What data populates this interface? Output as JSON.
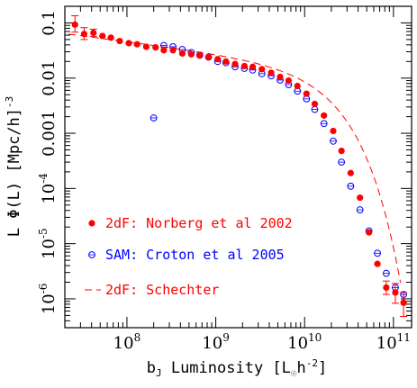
{
  "chart_data": {
    "type": "scatter",
    "title": "",
    "xlabel": "b_J Luminosity [L_☉h^-2]",
    "ylabel": "L Φ(L) [Mpc/h]^-3",
    "x_scale": "log",
    "y_scale": "log",
    "xlim": [
      20000000.0,
      160000000000.0
    ],
    "ylim": [
      3e-07,
      0.2
    ],
    "x_ticks": [
      {
        "value": 100000000.0,
        "base": "10",
        "exp": "8"
      },
      {
        "value": 1000000000.0,
        "base": "10",
        "exp": "9"
      },
      {
        "value": 10000000000.0,
        "base": "10",
        "exp": "10"
      },
      {
        "value": 100000000000.0,
        "base": "10",
        "exp": "11"
      }
    ],
    "y_ticks": [
      {
        "value": 0.1,
        "text": "0.1"
      },
      {
        "value": 0.01,
        "text": "0.01"
      },
      {
        "value": 0.001,
        "text": "0.001"
      },
      {
        "value": 0.0001,
        "base": "10",
        "exp": "-4"
      },
      {
        "value": 1e-05,
        "base": "10",
        "exp": "-5"
      },
      {
        "value": 1e-06,
        "base": "10",
        "exp": "-6"
      }
    ],
    "series": [
      {
        "name": "2dF: Norberg et al 2002",
        "marker": "filled-circle",
        "color": "#ff0000",
        "points": [
          {
            "x": 26000000.0,
            "y": 0.093,
            "lo": 0.068,
            "hi": 0.135
          },
          {
            "x": 33000000.0,
            "y": 0.063,
            "lo": 0.05,
            "hi": 0.082
          },
          {
            "x": 42000000.0,
            "y": 0.066,
            "lo": 0.057,
            "hi": 0.077
          },
          {
            "x": 53000000.0,
            "y": 0.058
          },
          {
            "x": 66000000.0,
            "y": 0.054
          },
          {
            "x": 83000000.0,
            "y": 0.047
          },
          {
            "x": 105000000.0,
            "y": 0.043
          },
          {
            "x": 130000000.0,
            "y": 0.041
          },
          {
            "x": 165000000.0,
            "y": 0.037
          },
          {
            "x": 210000000.0,
            "y": 0.036
          },
          {
            "x": 260000000.0,
            "y": 0.032
          },
          {
            "x": 330000000.0,
            "y": 0.032
          },
          {
            "x": 420000000.0,
            "y": 0.028
          },
          {
            "x": 530000000.0,
            "y": 0.027
          },
          {
            "x": 660000000.0,
            "y": 0.026
          },
          {
            "x": 830000000.0,
            "y": 0.024
          },
          {
            "x": 1050000000.0,
            "y": 0.022
          },
          {
            "x": 1300000000.0,
            "y": 0.02
          },
          {
            "x": 1650000000.0,
            "y": 0.018
          },
          {
            "x": 2100000000.0,
            "y": 0.0165
          },
          {
            "x": 2600000000.0,
            "y": 0.016
          },
          {
            "x": 3300000000.0,
            "y": 0.0145
          },
          {
            "x": 4200000000.0,
            "y": 0.0125
          },
          {
            "x": 5300000000.0,
            "y": 0.0105
          },
          {
            "x": 6600000000.0,
            "y": 0.009
          },
          {
            "x": 8300000000.0,
            "y": 0.0072
          },
          {
            "x": 10500000000.0,
            "y": 0.0052
          },
          {
            "x": 13000000000.0,
            "y": 0.0034
          },
          {
            "x": 16500000000.0,
            "y": 0.0021
          },
          {
            "x": 21000000000.0,
            "y": 0.0011
          },
          {
            "x": 26000000000.0,
            "y": 0.00048
          },
          {
            "x": 33000000000.0,
            "y": 0.00019
          },
          {
            "x": 42000000000.0,
            "y": 6.8e-05
          },
          {
            "x": 53000000000.0,
            "y": 1.6e-05
          },
          {
            "x": 66000000000.0,
            "y": 4.3e-06
          },
          {
            "x": 83000000000.0,
            "y": 1.6e-06,
            "lo": 1.2e-06,
            "hi": 2.1e-06
          },
          {
            "x": 105000000000.0,
            "y": 1.3e-06,
            "lo": 8.3e-07,
            "hi": 1.9e-06
          },
          {
            "x": 130000000000.0,
            "y": 8.5e-07,
            "lo": 4.8e-07,
            "hi": 1.3e-06
          }
        ]
      },
      {
        "name": "SAM: Croton et al 2005",
        "marker": "open-circle",
        "color": "#0000ff",
        "points": [
          {
            "x": 200000000.0,
            "y": 0.0019
          },
          {
            "x": 260000000.0,
            "y": 0.039
          },
          {
            "x": 330000000.0,
            "y": 0.037
          },
          {
            "x": 420000000.0,
            "y": 0.033
          },
          {
            "x": 530000000.0,
            "y": 0.029
          },
          {
            "x": 660000000.0,
            "y": 0.026
          },
          {
            "x": 830000000.0,
            "y": 0.024
          },
          {
            "x": 1050000000.0,
            "y": 0.02
          },
          {
            "x": 1300000000.0,
            "y": 0.019
          },
          {
            "x": 1650000000.0,
            "y": 0.016
          },
          {
            "x": 2100000000.0,
            "y": 0.015
          },
          {
            "x": 2600000000.0,
            "y": 0.014
          },
          {
            "x": 3300000000.0,
            "y": 0.012
          },
          {
            "x": 4200000000.0,
            "y": 0.011
          },
          {
            "x": 5300000000.0,
            "y": 0.0092
          },
          {
            "x": 6600000000.0,
            "y": 0.0076
          },
          {
            "x": 8300000000.0,
            "y": 0.0058
          },
          {
            "x": 10500000000.0,
            "y": 0.0042
          },
          {
            "x": 13000000000.0,
            "y": 0.0027
          },
          {
            "x": 16500000000.0,
            "y": 0.0015
          },
          {
            "x": 21000000000.0,
            "y": 0.00072
          },
          {
            "x": 26000000000.0,
            "y": 0.0003
          },
          {
            "x": 33000000000.0,
            "y": 0.00011
          },
          {
            "x": 42000000000.0,
            "y": 4.1e-05
          },
          {
            "x": 53000000000.0,
            "y": 1.7e-05
          },
          {
            "x": 66000000000.0,
            "y": 6.7e-06
          },
          {
            "x": 83000000000.0,
            "y": 2.9e-06
          },
          {
            "x": 105000000000.0,
            "y": 1.6e-06
          },
          {
            "x": 130000000000.0,
            "y": 1.2e-06
          }
        ]
      },
      {
        "name": "2dF: Schechter",
        "marker": "dashed-line",
        "color": "#ff0000",
        "schechter": {
          "phi_star": 0.0162,
          "l_star": 14000000000.0,
          "alpha": -1.21,
          "x_from": 22000000.0,
          "x_to": 120000000000.0,
          "y_floor": 3e-07
        }
      }
    ],
    "legend": {
      "placement": "bottom-left"
    },
    "grid": false
  }
}
